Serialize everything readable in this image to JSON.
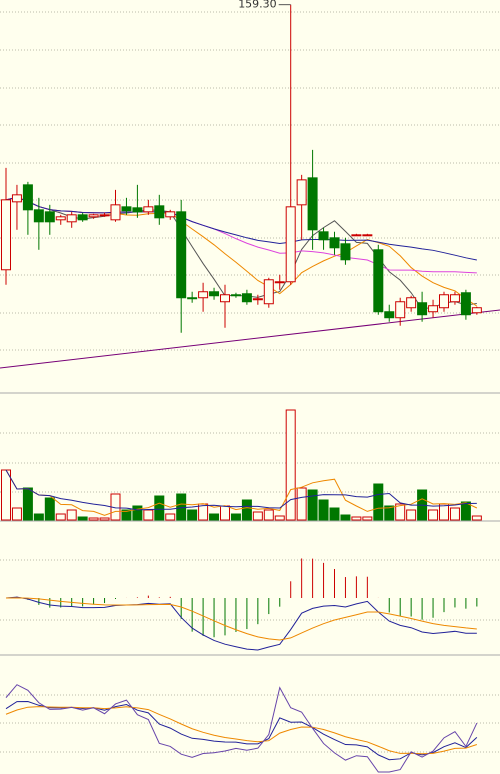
{
  "chart_data": {
    "type": "candlestick",
    "max_high_label": "159.30",
    "up_color": "#cc0000",
    "down_color": "#007700",
    "ma_colors": [
      "#555555",
      "#ee8800",
      "#dd44dd",
      "#222299"
    ],
    "ylim": [
      101,
      160
    ],
    "volume_ylim": [
      0,
      125
    ],
    "open": [
      119.5,
      129.7,
      132.25,
      128.5,
      128.2,
      127,
      126.7,
      127.75,
      127.45,
      127.75,
      127,
      128.95,
      128.8,
      128.2,
      129.1,
      127.45,
      128.2,
      115.3,
      115.3,
      116.2,
      114.7,
      115.75,
      115.9,
      115.15,
      114.4,
      117.7,
      117.7,
      129.25,
      133.3,
      125.2,
      124.3,
      123.4,
      124.75,
      124.75,
      122.5,
      113.2,
      112.3,
      113.8,
      114.55,
      113.2,
      113.8,
      114.7,
      116.05,
      113.05
    ],
    "high": [
      134.8,
      132.25,
      132.7,
      130.3,
      129.25,
      127.75,
      128.2,
      128.05,
      127.9,
      128.05,
      131.5,
      130.3,
      132.25,
      130,
      130.75,
      128.5,
      130,
      116.2,
      117.55,
      116.8,
      117.25,
      116.05,
      116.5,
      115.75,
      118.3,
      118.75,
      159.3,
      133.75,
      137.5,
      125.8,
      125.2,
      124.3,
      124.9,
      124.9,
      123.25,
      114.25,
      115.3,
      115.6,
      116.2,
      115,
      116.2,
      116.2,
      116.5,
      113.95
    ],
    "low": [
      117.25,
      125.5,
      124.75,
      122.5,
      124.75,
      126.25,
      125.8,
      126.7,
      127.15,
      127.45,
      126.7,
      127.75,
      127.3,
      127.75,
      126.25,
      127,
      110.05,
      114.55,
      113.2,
      115,
      110.8,
      115.3,
      114.25,
      114.25,
      113.8,
      116.5,
      117.25,
      124,
      122.5,
      122.5,
      121.75,
      120.25,
      124.6,
      124.6,
      112.75,
      111.7,
      111.1,
      113.2,
      111.7,
      112.3,
      113.2,
      114.25,
      112,
      112.75
    ],
    "close": [
      130,
      130.75,
      128.5,
      126.7,
      126.7,
      127.45,
      127.75,
      127,
      127.75,
      127.75,
      129.25,
      128.35,
      128.2,
      128.95,
      127.3,
      128.2,
      115.3,
      115.15,
      116.2,
      115.6,
      115.75,
      115.6,
      114.7,
      115.15,
      118,
      117.7,
      128.95,
      133,
      125.5,
      124,
      122.8,
      121,
      124.75,
      124.75,
      113.2,
      112.3,
      114.7,
      115.3,
      112.75,
      114.1,
      115.75,
      115.75,
      112.75,
      113.8
    ],
    "volume": [
      50,
      12,
      32,
      6,
      22,
      6,
      10,
      3,
      2,
      2,
      26,
      10,
      14,
      10,
      24,
      6,
      26,
      10,
      16,
      6,
      14,
      6,
      20,
      8,
      10,
      4,
      110,
      32,
      30,
      20,
      12,
      5,
      3,
      3,
      36,
      14,
      16,
      10,
      30,
      10,
      16,
      12,
      18,
      4
    ]
  }
}
